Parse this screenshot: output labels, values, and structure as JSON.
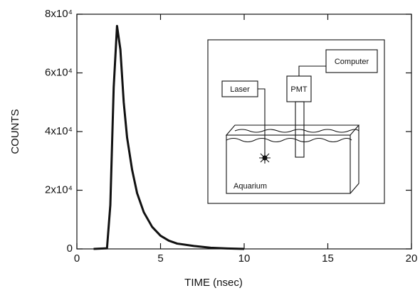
{
  "chart_data": {
    "type": "line",
    "xlabel": "TIME (nsec)",
    "ylabel": "COUNTS",
    "xlim": [
      0,
      20
    ],
    "xticks": [
      0,
      5,
      10,
      15,
      20
    ],
    "ylim": [
      0,
      80000
    ],
    "yticks": [
      0,
      {
        "value": 20000,
        "label": "2x10⁴"
      },
      {
        "value": 40000,
        "label": "4x10⁴"
      },
      {
        "value": 60000,
        "label": "6x10⁴"
      },
      {
        "value": 80000,
        "label": "8x10⁴"
      }
    ],
    "series": [
      {
        "color": "#111111",
        "x": [
          1,
          1.8,
          2.0,
          2.2,
          2.4,
          2.6,
          2.8,
          3.0,
          3.3,
          3.6,
          4.0,
          4.5,
          5.0,
          5.5,
          6,
          7,
          8,
          9,
          10
        ],
        "values": [
          0,
          200,
          15000,
          55000,
          76000,
          68000,
          50000,
          38000,
          27000,
          19000,
          12500,
          7500,
          4500,
          2800,
          1800,
          1000,
          400,
          150,
          0
        ]
      }
    ],
    "inset": {
      "labels": [
        "Computer",
        "Laser",
        "PMT",
        "Aquarium"
      ]
    }
  }
}
